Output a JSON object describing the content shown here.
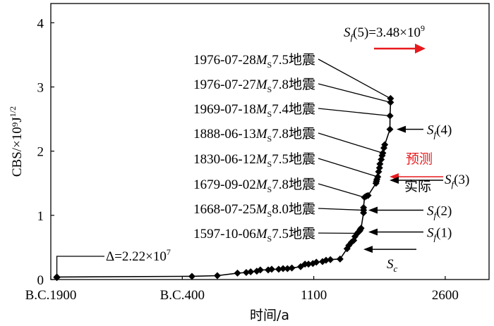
{
  "chart_data": {
    "type": "line",
    "xlabel": "时间/a",
    "ylabel": "CBS/×10⁹J",
    "ylabel_sup": "1/2",
    "xlim": [
      -1900,
      3100
    ],
    "ylim": [
      0,
      4.3
    ],
    "xticks": [
      -1900,
      -400,
      1100,
      2600
    ],
    "xtick_labels": [
      "B.C.1900",
      "B.C.400",
      "1100",
      "2600"
    ],
    "yticks": [
      0,
      1,
      2,
      3,
      4
    ],
    "ytick_labels": [
      "0",
      "1",
      "2",
      "3",
      "4"
    ],
    "series": [
      {
        "name": "CBS",
        "x": [
          -1831,
          -1831,
          -290,
          0,
          230,
          330,
          380,
          450,
          490,
          580,
          620,
          700,
          750,
          800,
          850,
          950,
          1000,
          1040,
          1090,
          1130,
          1200,
          1240,
          1290,
          1400,
          1480,
          1500,
          1530,
          1556,
          1570,
          1597,
          1610,
          1618,
          1625,
          1630,
          1640,
          1668,
          1668,
          1668,
          1679,
          1700,
          1720,
          1810,
          1815,
          1820,
          1830,
          1840,
          1850,
          1855,
          1870,
          1880,
          1888,
          1900,
          1910,
          1969,
          1970,
          1976,
          1976
        ],
        "y": [
          0.03,
          0.04,
          0.05,
          0.06,
          0.1,
          0.11,
          0.12,
          0.13,
          0.15,
          0.15,
          0.16,
          0.16,
          0.17,
          0.17,
          0.18,
          0.2,
          0.24,
          0.24,
          0.25,
          0.27,
          0.28,
          0.3,
          0.31,
          0.32,
          0.48,
          0.53,
          0.58,
          0.61,
          0.67,
          0.72,
          0.74,
          0.75,
          0.76,
          0.78,
          0.8,
          1.04,
          1.08,
          1.12,
          1.28,
          1.3,
          1.31,
          1.5,
          1.53,
          1.56,
          1.6,
          1.68,
          1.74,
          1.8,
          1.87,
          1.93,
          1.97,
          2.05,
          2.1,
          2.34,
          2.55,
          2.76,
          2.82
        ]
      }
    ],
    "events": [
      {
        "label": "1976-07-28",
        "ms": "7.5",
        "suffix": "地震",
        "x": 1976,
        "y": 2.82
      },
      {
        "label": "1976-07-27",
        "ms": "7.8",
        "suffix": "地震",
        "x": 1976,
        "y": 2.76
      },
      {
        "label": "1969-07-18",
        "ms": "7.4",
        "suffix": "地震",
        "x": 1969,
        "y": 2.55
      },
      {
        "label": "1888-06-13",
        "ms": "7.8",
        "suffix": "地震",
        "x": 1888,
        "y": 1.97
      },
      {
        "label": "1830-06-12",
        "ms": "7.5",
        "suffix": "地震",
        "x": 1830,
        "y": 1.6
      },
      {
        "label": "1679-09-02",
        "ms": "7.8",
        "suffix": "地震",
        "x": 1679,
        "y": 1.28
      },
      {
        "label": "1668-07-25",
        "ms": "8.0",
        "suffix": "地震",
        "x": 1668,
        "y": 1.08
      },
      {
        "label": "1597-10-06",
        "ms": "7.5",
        "suffix": "地震",
        "x": 1597,
        "y": 0.72
      }
    ],
    "thresholds": [
      {
        "name": "S",
        "sub": "c",
        "y": 0.47
      },
      {
        "name": "S",
        "sub": "f",
        "arg": "(1)",
        "y": 0.74
      },
      {
        "name": "S",
        "sub": "f",
        "arg": "(2)",
        "y": 1.08
      },
      {
        "name": "S",
        "sub": "f",
        "arg": "(3)",
        "y": 1.59
      },
      {
        "name": "S",
        "sub": "f",
        "arg": "(4)",
        "y": 2.34
      }
    ],
    "sf5": {
      "name": "S",
      "sub": "f",
      "arg": "(5)",
      "value_text": "=3.48×10",
      "sup": "9"
    },
    "delta": {
      "text": "Δ=2.22×10",
      "sup": "7"
    },
    "prediction_label": "预测",
    "actual_label": "实际",
    "prediction_color": "#e8191c"
  }
}
